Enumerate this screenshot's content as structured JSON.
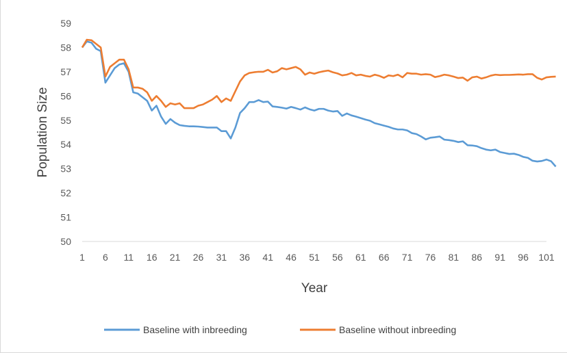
{
  "chart_data": {
    "type": "line",
    "title": "",
    "xlabel": "Year",
    "ylabel": "Population Size",
    "xlim": [
      1,
      101
    ],
    "ylim": [
      50,
      59
    ],
    "x_tick_labels": [
      "1",
      "6",
      "11",
      "16",
      "21",
      "26",
      "31",
      "36",
      "41",
      "46",
      "51",
      "56",
      "61",
      "66",
      "71",
      "76",
      "81",
      "86",
      "91",
      "96",
      "101"
    ],
    "y_tick_labels": [
      "50",
      "51",
      "52",
      "53",
      "54",
      "55",
      "56",
      "57",
      "58",
      "59"
    ],
    "grid": "none",
    "legend_position": "bottom",
    "series": [
      {
        "name": "Baseline with inbreeding",
        "color": "#5B9BD5",
        "values": [
          58.0,
          58.25,
          58.2,
          57.95,
          57.85,
          56.55,
          56.85,
          57.15,
          57.3,
          57.35,
          57.0,
          56.15,
          56.1,
          55.95,
          55.8,
          55.4,
          55.6,
          55.15,
          54.85,
          55.05,
          54.9,
          54.8,
          54.77,
          54.75,
          54.75,
          54.74,
          54.72,
          54.7,
          54.7,
          54.7,
          54.55,
          54.55,
          54.25,
          54.7,
          55.3,
          55.5,
          55.75,
          55.75,
          55.83,
          55.75,
          55.77,
          55.57,
          55.55,
          55.52,
          55.48,
          55.55,
          55.5,
          55.44,
          55.53,
          55.45,
          55.4,
          55.47,
          55.47,
          55.4,
          55.36,
          55.38,
          55.18,
          55.28,
          55.2,
          55.15,
          55.09,
          55.03,
          54.98,
          54.88,
          54.83,
          54.78,
          54.73,
          54.66,
          54.62,
          54.62,
          54.58,
          54.47,
          54.43,
          54.33,
          54.21,
          54.28,
          54.3,
          54.33,
          54.2,
          54.18,
          54.15,
          54.1,
          54.13,
          53.97,
          53.96,
          53.93,
          53.85,
          53.79,
          53.76,
          53.79,
          53.69,
          53.65,
          53.61,
          53.62,
          53.57,
          53.49,
          53.45,
          53.33,
          53.3,
          53.32,
          53.38,
          53.31,
          53.09
        ]
      },
      {
        "name": "Baseline without inbreeding",
        "color": "#ED7D31",
        "values": [
          58.0,
          58.32,
          58.3,
          58.15,
          58.0,
          56.8,
          57.2,
          57.35,
          57.5,
          57.5,
          57.1,
          56.35,
          56.35,
          56.3,
          56.15,
          55.8,
          56.0,
          55.8,
          55.55,
          55.7,
          55.65,
          55.7,
          55.5,
          55.5,
          55.5,
          55.6,
          55.65,
          55.75,
          55.85,
          56.0,
          55.75,
          55.9,
          55.8,
          56.2,
          56.6,
          56.85,
          56.95,
          56.98,
          57.0,
          57.0,
          57.08,
          56.97,
          57.02,
          57.15,
          57.1,
          57.15,
          57.2,
          57.1,
          56.88,
          56.97,
          56.92,
          56.98,
          57.02,
          57.05,
          56.98,
          56.93,
          56.85,
          56.88,
          56.95,
          56.85,
          56.88,
          56.83,
          56.8,
          56.88,
          56.83,
          56.75,
          56.85,
          56.82,
          56.88,
          56.77,
          56.95,
          56.92,
          56.92,
          56.88,
          56.9,
          56.88,
          56.78,
          56.82,
          56.88,
          56.85,
          56.8,
          56.74,
          56.76,
          56.63,
          56.77,
          56.8,
          56.72,
          56.77,
          56.84,
          56.88,
          56.86,
          56.87,
          56.87,
          56.88,
          56.89,
          56.88,
          56.9,
          56.9,
          56.75,
          56.68,
          56.77,
          56.79,
          56.8
        ]
      }
    ]
  }
}
